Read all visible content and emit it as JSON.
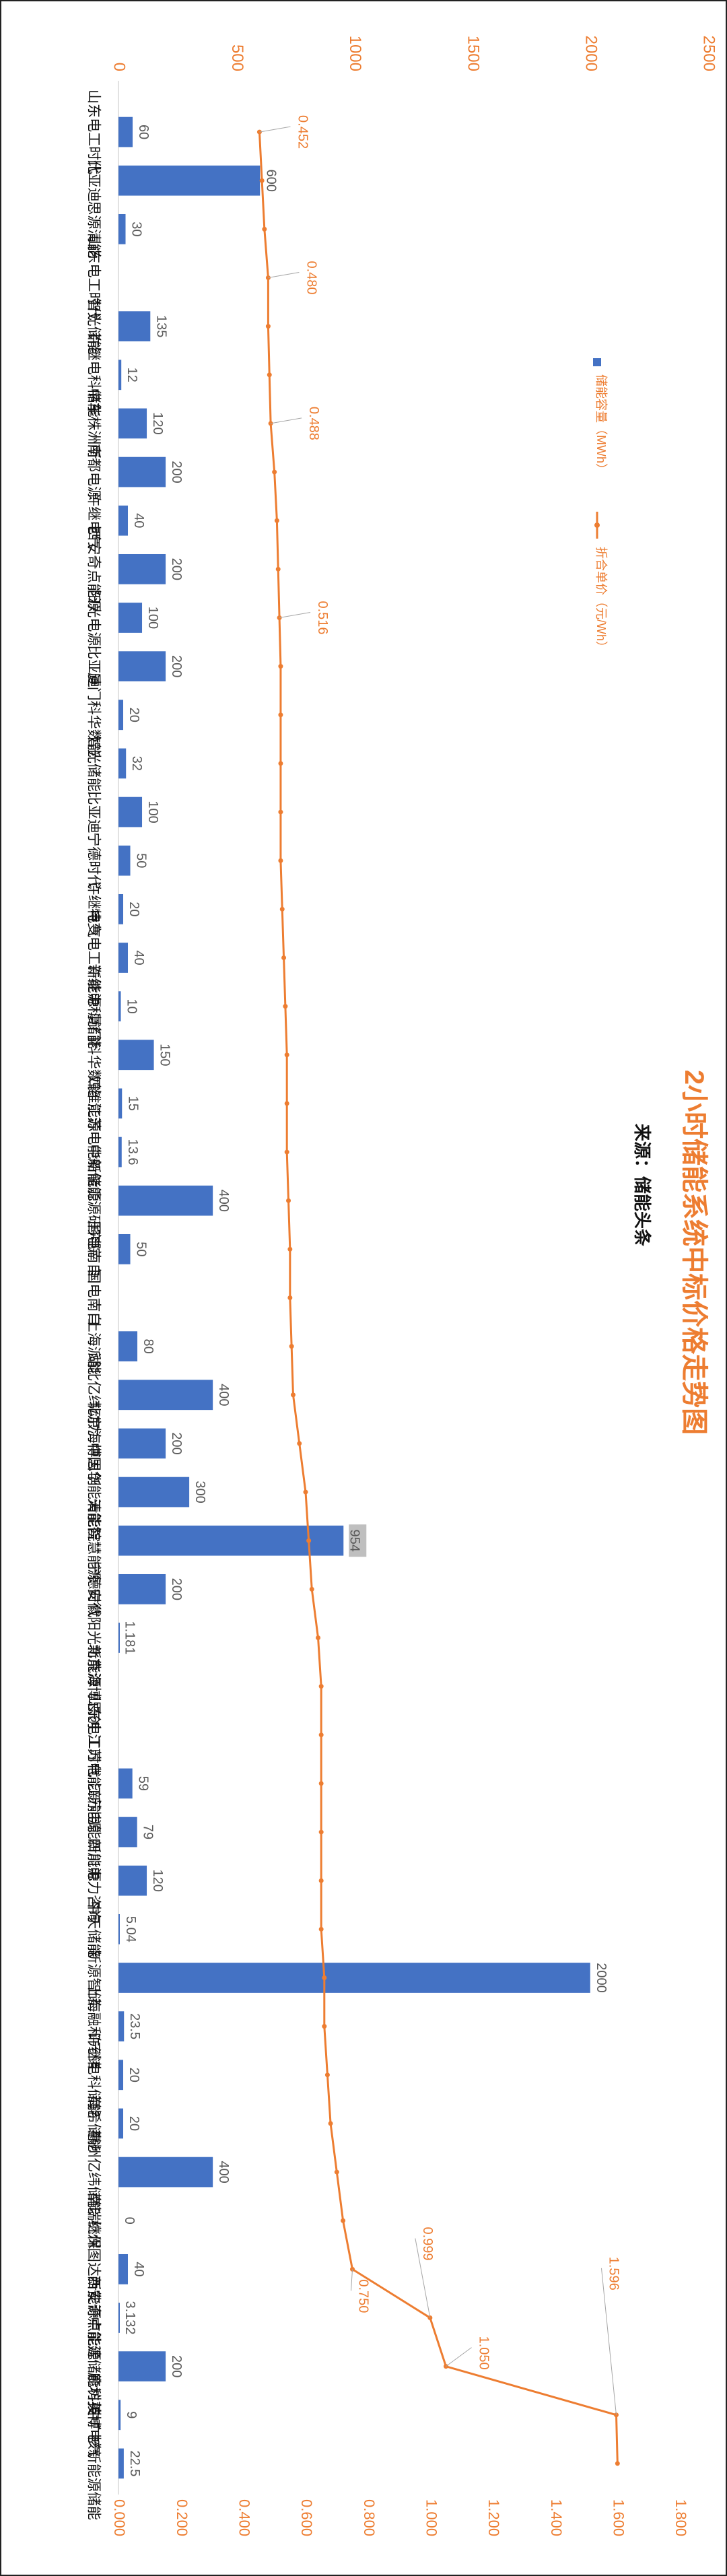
{
  "chart_data": {
    "type": "bar+line",
    "title": "2小时储能系统中标价格走势图",
    "subtitle": "来源：储能头条",
    "categories": [
      "山东电工时代",
      "比亚迪",
      "思源清能",
      "山东电工时代",
      "智光储能",
      "许继电科储能",
      "中车株洲所",
      "南都电源",
      "许继电气",
      "西安奇点能源",
      "阳光电源",
      "比亚迪",
      "厦门科华数能",
      "智光储能",
      "比亚迪",
      "宁德时代",
      "许继电气",
      "特变电工新能源",
      "许继电科储能",
      "厦门科华数能",
      "四维能源",
      "江苏电能新能源",
      "中船储能源研究院",
      "国电南自",
      "国电南自",
      "上海派能",
      "湖北亿纬动力",
      "北京海博思创",
      "中国华能清能院",
      "天能智慧能源",
      "宁德时代",
      "安徽阳光新能源",
      "北京海博思创",
      "山东电工时代",
      "江苏电能新能源",
      "江苏电能新能源",
      "四川电力咨询",
      "中天储能",
      "新源智储",
      "上海融和元储",
      "许继电科储能",
      "海希储能",
      "惠州亿纬储能",
      "南瑞继保",
      "杭州图达新能源",
      "西安奇点能源",
      "中能建储能科技",
      "廊坊英博电气",
      "中广核新能源储能"
    ],
    "series": [
      {
        "name": "储能容量（MWh）",
        "axis": "top",
        "values": [
          60,
          600,
          30,
          null,
          135,
          12,
          120,
          200,
          40,
          200,
          100,
          200,
          20,
          32,
          100,
          50,
          20,
          40,
          10,
          150,
          15,
          13.6,
          400,
          50,
          null,
          80,
          400,
          200,
          300,
          954,
          200,
          1.181,
          null,
          null,
          59,
          79,
          120,
          5.04,
          2000,
          23.5,
          20,
          20,
          400,
          0,
          40,
          3.132,
          200,
          9,
          22.5
        ],
        "data_labels": [
          "60",
          "600",
          "30",
          "",
          "135",
          "12",
          "120",
          "200",
          "40",
          "200",
          "100",
          "200",
          "20",
          "32",
          "100",
          "50",
          "20",
          "40",
          "10",
          "150",
          "15",
          "13.6",
          "400",
          "50",
          "",
          "80",
          "400",
          "200",
          "300",
          "954",
          "200",
          "1.181",
          "",
          "",
          "59",
          "79",
          "120",
          "5.04",
          "2000",
          "23.5",
          "20",
          "20",
          "400",
          "0",
          "40",
          "3.132",
          "200",
          "9",
          "22.5"
        ]
      },
      {
        "name": "折合单价（元/Wh）",
        "axis": "bottom",
        "values": [
          0.452,
          0.46,
          0.468,
          0.48,
          0.48,
          0.484,
          0.488,
          0.5,
          0.508,
          0.512,
          0.516,
          0.52,
          0.52,
          0.52,
          0.52,
          0.52,
          0.525,
          0.53,
          0.535,
          0.54,
          0.54,
          0.54,
          0.545,
          0.55,
          0.55,
          0.555,
          0.56,
          0.58,
          0.6,
          0.61,
          0.62,
          0.64,
          0.65,
          0.65,
          0.65,
          0.65,
          0.65,
          0.65,
          0.66,
          0.66,
          0.67,
          0.68,
          0.7,
          0.72,
          0.75,
          0.999,
          1.05,
          1.596,
          1.6
        ],
        "data_labels": [
          "0.452",
          "",
          "",
          "0.480",
          "",
          "",
          "0.488",
          "",
          "",
          "",
          "0.516",
          "",
          "",
          "",
          "",
          "",
          "",
          "",
          "",
          "",
          "",
          "",
          "",
          "",
          "",
          "",
          "",
          "",
          "",
          "",
          "",
          "",
          "",
          "",
          "",
          "",
          "",
          "",
          "",
          "",
          "",
          "",
          "",
          "",
          "0.750",
          "0.999",
          "1.050",
          "1.596",
          ""
        ]
      }
    ],
    "axis_top": {
      "ticks": [
        "0",
        "500",
        "1000",
        "1500",
        "2000",
        "2500"
      ],
      "range": [
        0,
        2500
      ]
    },
    "axis_bottom": {
      "ticks": [
        "0.000",
        "0.200",
        "0.400",
        "0.600",
        "0.800",
        "1.000",
        "1.200",
        "1.400",
        "1.600",
        "1.800"
      ],
      "range": [
        0,
        1.8
      ]
    },
    "legend_position": "right",
    "grid": false,
    "colors": {
      "bar": "#4472C4",
      "line": "#ED7D31",
      "title": "#ED7D31",
      "axis_text": "#ED7D31",
      "label_text": "#595959",
      "highlight_label_bg": "#BFBFBF"
    }
  }
}
